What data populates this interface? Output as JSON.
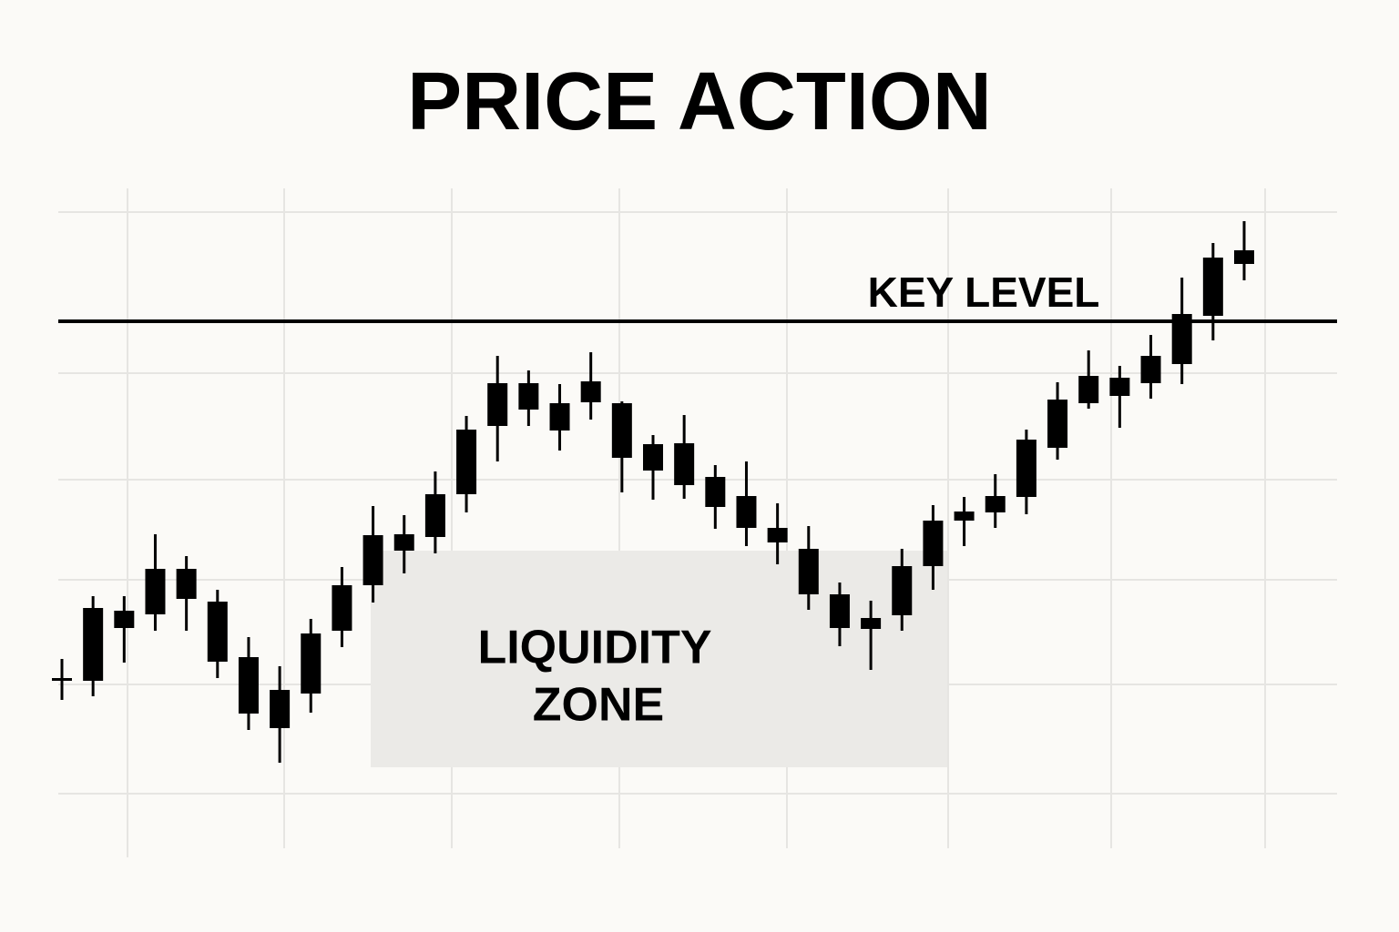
{
  "chart_data": {
    "type": "candlestick",
    "title": "PRICE ACTION",
    "color": "#000000",
    "ylim": [
      0,
      700
    ],
    "key_level": {
      "label": "KEY LEVEL",
      "value": 547
    },
    "liquidity_zone": {
      "label": [
        "LIQUIDITY",
        "ZONE"
      ]
    },
    "open": [
      155,
      152,
      210,
      225,
      275,
      239,
      178,
      142,
      138,
      207,
      257,
      295,
      310,
      357,
      432,
      479,
      457,
      458,
      457,
      412,
      413,
      376,
      355,
      320,
      297,
      247,
      209,
      224,
      278,
      328,
      337,
      354,
      408,
      457,
      485,
      479,
      500,
      553,
      610
    ],
    "high": [
      176,
      245,
      245,
      313,
      289,
      252,
      200,
      168,
      220,
      277,
      344,
      334,
      382,
      443,
      509,
      493,
      478,
      513,
      459,
      422,
      444,
      389,
      393,
      347,
      322,
      260,
      240,
      297,
      345,
      354,
      379,
      428,
      480,
      515,
      498,
      532,
      595,
      633,
      657
    ],
    "low": [
      131,
      135,
      172,
      207,
      207,
      155,
      98,
      62,
      117,
      189,
      238,
      270,
      292,
      337,
      393,
      432,
      405,
      439,
      359,
      351,
      352,
      319,
      300,
      280,
      230,
      190,
      164,
      207,
      252,
      300,
      320,
      335,
      395,
      451,
      430,
      462,
      478,
      526,
      592
    ],
    "close": [
      155,
      232,
      229,
      275,
      242,
      173,
      116,
      100,
      204,
      257,
      312,
      313,
      357,
      428,
      479,
      450,
      427,
      481,
      397,
      383,
      367,
      343,
      320,
      304,
      247,
      210,
      221,
      278,
      328,
      338,
      355,
      417,
      461,
      487,
      465,
      509,
      555,
      617,
      625
    ]
  }
}
